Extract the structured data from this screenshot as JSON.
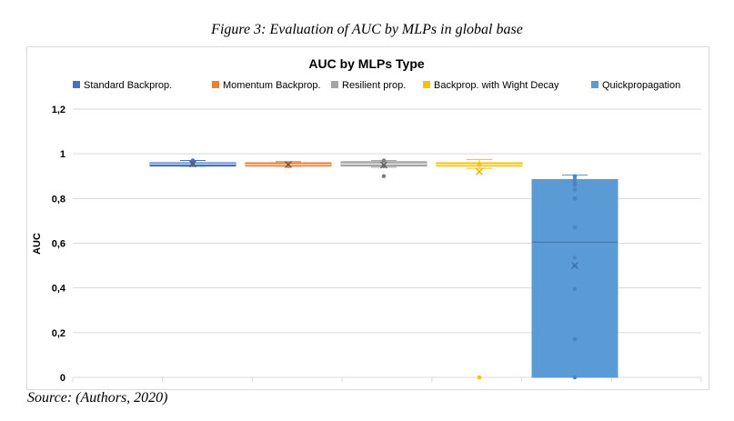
{
  "figure": {
    "caption": "Figure 3: Evaluation of AUC by MLPs in global base",
    "source": "Source: (Authors, 2020)"
  },
  "chart_data": {
    "type": "box",
    "title": "AUC by MLPs Type",
    "xlabel": "",
    "ylabel": "AUC",
    "ylim": [
      0,
      1.2
    ],
    "yticks": [
      "0",
      "0,2",
      "0,4",
      "0,6",
      "0,8",
      "1",
      "1,2"
    ],
    "ytick_values": [
      0,
      0.2,
      0.4,
      0.6,
      0.8,
      1.0,
      1.2
    ],
    "grid": true,
    "legend_position": "top",
    "series": [
      {
        "name": "Standard Backprop.",
        "color": "#4472c4",
        "min": 0.945,
        "q1": 0.945,
        "median": 0.955,
        "q3": 0.96,
        "max": 0.97,
        "mean": 0.955,
        "points": [
          0.97,
          0.95,
          0.955
        ]
      },
      {
        "name": "Momentum Backprop.",
        "color": "#ed7d31",
        "min": 0.945,
        "q1": 0.945,
        "median": 0.952,
        "q3": 0.96,
        "max": 0.965,
        "mean": 0.952,
        "points": [
          0.945,
          0.958
        ]
      },
      {
        "name": "Resilient prop.",
        "color": "#a5a5a5",
        "min": 0.94,
        "q1": 0.945,
        "median": 0.955,
        "q3": 0.965,
        "max": 0.97,
        "mean": 0.95,
        "points": [
          0.9,
          0.945,
          0.97
        ]
      },
      {
        "name": "Backprop. with Wight Decay",
        "color": "#ffc000",
        "min": 0.935,
        "q1": 0.945,
        "median": 0.952,
        "q3": 0.96,
        "max": 0.975,
        "mean": 0.92,
        "points": [
          0.0,
          0.955
        ]
      },
      {
        "name": "Quickpropagation",
        "color": "#5b9bd5",
        "min": 0.0,
        "q1": 0.0,
        "median": 0.605,
        "q3": 0.885,
        "max": 0.905,
        "mean": 0.5,
        "points": [
          0.0,
          0.17,
          0.395,
          0.5,
          0.535,
          0.67,
          0.8,
          0.84,
          0.86,
          0.87,
          0.885,
          0.9
        ]
      }
    ]
  }
}
